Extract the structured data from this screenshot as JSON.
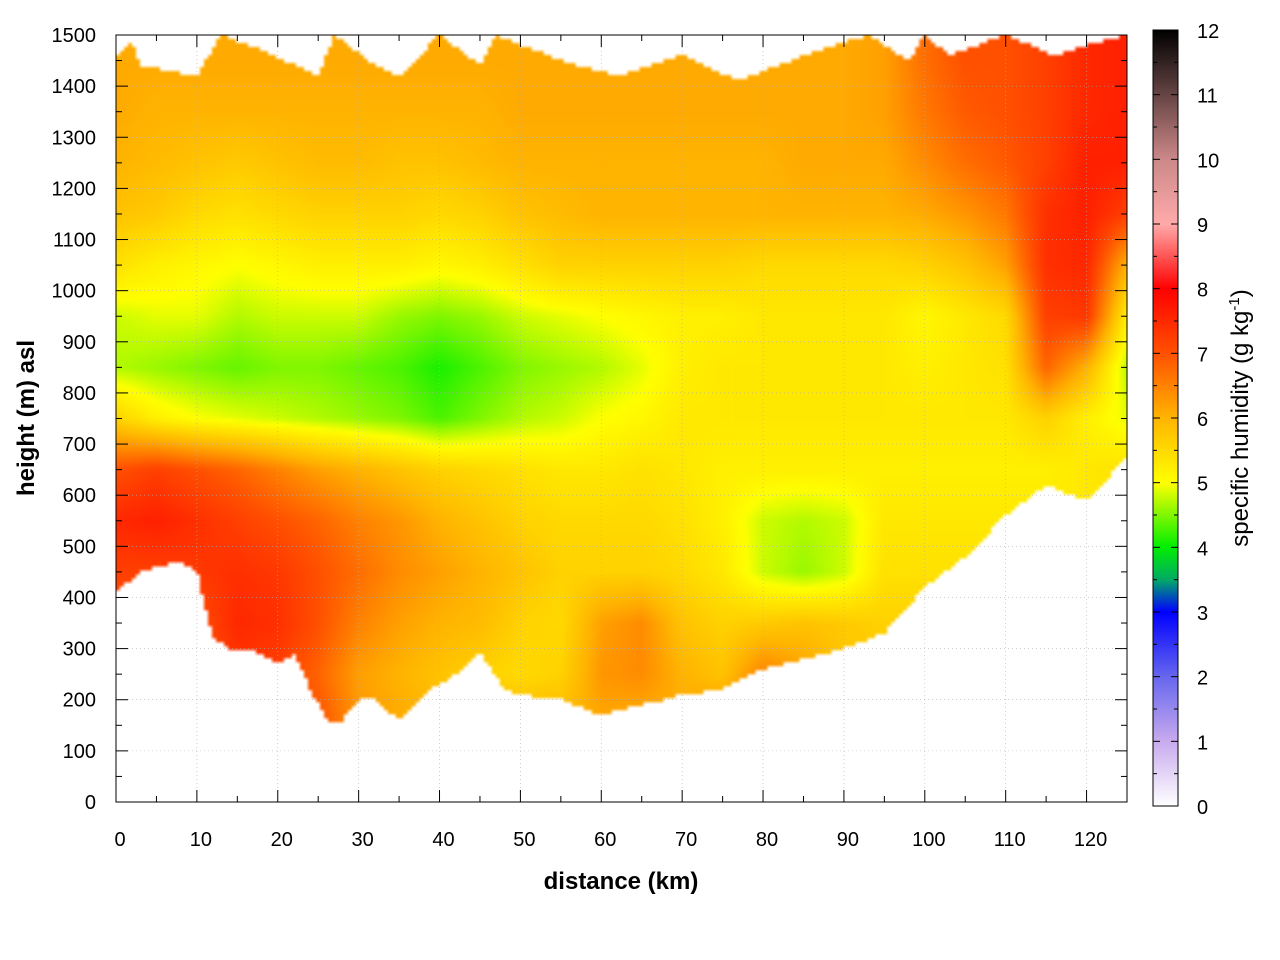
{
  "chart_data": {
    "type": "heatmap",
    "title": "",
    "xlabel": "distance (km)",
    "ylabel": "height (m) asl",
    "colorbar_label_parts": {
      "main": "specific humidity (g kg",
      "sup": "-1",
      "tail": ")"
    },
    "xlim": [
      0,
      125
    ],
    "ylim": [
      0,
      1500
    ],
    "x_ticks": [
      0,
      10,
      20,
      30,
      40,
      50,
      60,
      70,
      80,
      90,
      100,
      110,
      120
    ],
    "y_ticks": [
      0,
      100,
      200,
      300,
      400,
      500,
      600,
      700,
      800,
      900,
      1000,
      1100,
      1200,
      1300,
      1400,
      1500
    ],
    "colorbar_ticks": [
      0,
      1,
      2,
      3,
      4,
      5,
      6,
      7,
      8,
      9,
      10,
      11,
      12
    ],
    "colorbar_range": [
      0,
      12
    ],
    "grid": true,
    "colormap": [
      [
        0,
        "#ffffff"
      ],
      [
        1,
        "#c8aaee"
      ],
      [
        2,
        "#6666ee"
      ],
      [
        3,
        "#0000ff"
      ],
      [
        3.5,
        "#00aa66"
      ],
      [
        4,
        "#00ee00"
      ],
      [
        5,
        "#ffff00"
      ],
      [
        6,
        "#ffb400"
      ],
      [
        7,
        "#ff5000"
      ],
      [
        8,
        "#ff0000"
      ],
      [
        9,
        "#ffaaaa"
      ],
      [
        10,
        "#cc8888"
      ],
      [
        11,
        "#664444"
      ],
      [
        12,
        "#000000"
      ]
    ],
    "terrain_bottom": {
      "x": [
        0,
        3,
        5,
        8,
        10,
        12,
        14,
        16,
        18,
        20,
        22,
        24,
        26,
        28,
        30,
        32,
        35,
        38,
        40,
        43,
        45,
        48,
        50,
        55,
        60,
        62,
        65,
        68,
        70,
        75,
        80,
        85,
        90,
        95,
        100,
        105,
        110,
        115,
        118,
        120,
        122,
        125
      ],
      "y": [
        410,
        450,
        460,
        470,
        450,
        320,
        300,
        300,
        290,
        270,
        290,
        220,
        160,
        160,
        200,
        200,
        160,
        210,
        230,
        260,
        290,
        220,
        210,
        200,
        170,
        180,
        190,
        200,
        210,
        220,
        260,
        280,
        300,
        330,
        420,
        480,
        560,
        620,
        600,
        590,
        620,
        680
      ]
    },
    "top_edge": {
      "x": [
        0,
        2,
        3,
        10,
        13,
        18,
        25,
        27,
        32,
        35,
        40,
        45,
        47,
        55,
        62,
        70,
        77,
        85,
        93,
        98,
        100,
        103,
        110,
        116,
        120,
        125
      ],
      "y": [
        1460,
        1490,
        1440,
        1420,
        1500,
        1470,
        1420,
        1500,
        1440,
        1420,
        1500,
        1440,
        1500,
        1450,
        1420,
        1460,
        1410,
        1460,
        1500,
        1450,
        1500,
        1460,
        1500,
        1460,
        1480,
        1500
      ]
    },
    "humidity_field": {
      "x": [
        0,
        5,
        10,
        15,
        20,
        25,
        30,
        35,
        40,
        45,
        50,
        55,
        60,
        65,
        70,
        75,
        80,
        85,
        90,
        95,
        100,
        105,
        110,
        115,
        120,
        125
      ],
      "y": [
        150,
        250,
        350,
        450,
        550,
        650,
        750,
        850,
        950,
        1050,
        1150,
        1250,
        1350,
        1450
      ],
      "values_g_per_kg": [
        [
          7.0,
          7.0,
          7.0,
          7.0,
          7.0,
          7.0,
          6.3,
          6.1,
          6.0,
          6.0,
          6.0,
          6.0,
          6.1,
          6.0,
          6.1,
          6.5,
          6.7,
          6.5,
          6.2,
          6.2,
          6.2,
          6.2,
          6.3,
          6.3,
          6.3,
          6.3
        ],
        [
          7.0,
          7.0,
          7.0,
          7.3,
          7.2,
          6.8,
          6.2,
          6.0,
          5.8,
          5.6,
          5.5,
          5.6,
          6.3,
          6.4,
          6.0,
          5.8,
          6.5,
          6.2,
          5.8,
          5.8,
          5.8,
          5.8,
          5.8,
          5.8,
          5.8,
          5.8
        ],
        [
          7.0,
          7.0,
          7.0,
          7.5,
          7.4,
          7.0,
          6.5,
          6.2,
          6.0,
          5.9,
          5.6,
          5.5,
          6.2,
          6.4,
          5.8,
          5.6,
          5.7,
          5.8,
          5.7,
          5.6,
          5.6,
          5.6,
          5.6,
          5.6,
          5.6,
          5.6
        ],
        [
          7.2,
          7.2,
          7.3,
          7.4,
          7.3,
          7.0,
          6.7,
          6.4,
          6.2,
          6.0,
          5.8,
          5.6,
          5.6,
          5.6,
          5.5,
          5.3,
          4.8,
          4.6,
          4.8,
          5.4,
          5.4,
          5.4,
          5.4,
          5.4,
          5.4,
          5.4
        ],
        [
          7.5,
          7.6,
          7.4,
          7.2,
          7.0,
          6.8,
          6.5,
          6.3,
          6.0,
          5.8,
          5.6,
          5.5,
          5.5,
          5.5,
          5.4,
          5.2,
          4.8,
          4.7,
          4.8,
          5.3,
          5.3,
          5.3,
          5.3,
          5.3,
          5.3,
          5.3
        ],
        [
          7.0,
          7.2,
          7.0,
          6.8,
          6.5,
          6.2,
          6.0,
          5.8,
          5.6,
          5.5,
          5.4,
          5.3,
          5.3,
          5.4,
          5.3,
          5.2,
          5.2,
          5.2,
          5.2,
          5.2,
          5.2,
          5.2,
          5.2,
          5.2,
          5.3,
          5.4
        ],
        [
          5.6,
          5.2,
          5.0,
          4.9,
          4.8,
          4.7,
          4.6,
          4.5,
          4.3,
          4.5,
          4.7,
          4.8,
          5.0,
          5.1,
          5.3,
          5.3,
          5.3,
          5.3,
          5.3,
          5.3,
          5.3,
          5.3,
          5.3,
          5.6,
          5.2,
          4.9
        ],
        [
          4.7,
          4.6,
          4.5,
          4.4,
          4.5,
          4.5,
          4.4,
          4.3,
          4.1,
          4.3,
          4.5,
          4.6,
          4.7,
          4.9,
          5.2,
          5.3,
          5.3,
          5.3,
          5.3,
          5.3,
          5.2,
          5.3,
          5.4,
          6.8,
          6.0,
          4.7
        ],
        [
          4.8,
          4.9,
          4.9,
          4.7,
          4.8,
          4.8,
          4.8,
          4.6,
          4.5,
          4.6,
          4.8,
          4.9,
          5.0,
          5.1,
          5.2,
          5.2,
          5.3,
          5.3,
          5.3,
          5.3,
          5.1,
          5.3,
          5.5,
          7.2,
          7.3,
          5.2
        ],
        [
          5.4,
          5.2,
          5.1,
          5.0,
          5.1,
          5.2,
          5.2,
          5.2,
          5.1,
          5.2,
          5.4,
          5.6,
          5.6,
          5.6,
          5.6,
          5.6,
          5.5,
          5.5,
          5.5,
          5.5,
          5.6,
          5.8,
          6.2,
          7.4,
          7.5,
          6.0
        ],
        [
          5.8,
          5.7,
          5.5,
          5.4,
          5.5,
          5.6,
          5.6,
          5.6,
          5.5,
          5.6,
          5.8,
          5.9,
          6.0,
          6.0,
          6.0,
          6.0,
          6.0,
          6.0,
          6.0,
          6.0,
          6.1,
          6.3,
          6.6,
          7.4,
          7.6,
          7.2
        ],
        [
          6.0,
          5.9,
          5.8,
          5.7,
          5.8,
          5.9,
          5.9,
          5.8,
          5.8,
          5.9,
          6.0,
          6.0,
          6.0,
          6.0,
          6.0,
          6.0,
          6.0,
          6.1,
          6.1,
          6.1,
          6.4,
          6.7,
          6.9,
          7.2,
          7.6,
          7.6
        ],
        [
          6.1,
          6.0,
          6.0,
          6.0,
          6.0,
          6.0,
          6.0,
          6.0,
          6.0,
          6.0,
          6.1,
          6.1,
          6.1,
          6.1,
          6.1,
          6.1,
          6.1,
          6.1,
          6.1,
          6.2,
          6.6,
          6.9,
          7.0,
          7.2,
          7.5,
          7.6
        ],
        [
          6.1,
          6.1,
          6.1,
          6.1,
          6.1,
          6.1,
          6.1,
          6.1,
          6.1,
          6.1,
          6.1,
          6.1,
          6.1,
          6.1,
          6.1,
          6.1,
          6.1,
          6.1,
          6.1,
          6.2,
          6.7,
          7.0,
          7.0,
          7.2,
          7.5,
          7.6
        ]
      ]
    }
  }
}
